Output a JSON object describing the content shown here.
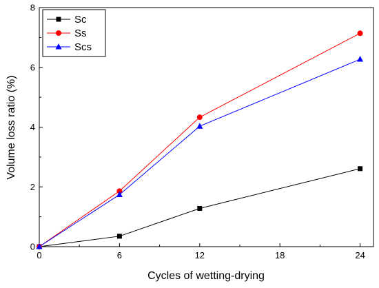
{
  "chart_data": {
    "type": "line",
    "title": "",
    "xlabel": "Cycles of wetting-drying",
    "ylabel": "Volume loss ratio (%)",
    "xlim": [
      0,
      25
    ],
    "ylim": [
      0,
      8
    ],
    "xticks": [
      0,
      6,
      12,
      18,
      24
    ],
    "yticks": [
      0,
      2,
      4,
      6,
      8
    ],
    "grid": false,
    "legend_position": "top-left",
    "x": [
      0,
      6,
      12,
      24
    ],
    "series": [
      {
        "name": "Sc",
        "values": [
          0,
          0.35,
          1.28,
          2.61
        ],
        "color": "#000000",
        "marker": "square"
      },
      {
        "name": "Ss",
        "values": [
          0,
          1.86,
          4.33,
          7.14
        ],
        "color": "#ff0000",
        "marker": "circle"
      },
      {
        "name": "Scs",
        "values": [
          0,
          1.74,
          4.03,
          6.27
        ],
        "color": "#0000ff",
        "marker": "triangle"
      }
    ]
  }
}
